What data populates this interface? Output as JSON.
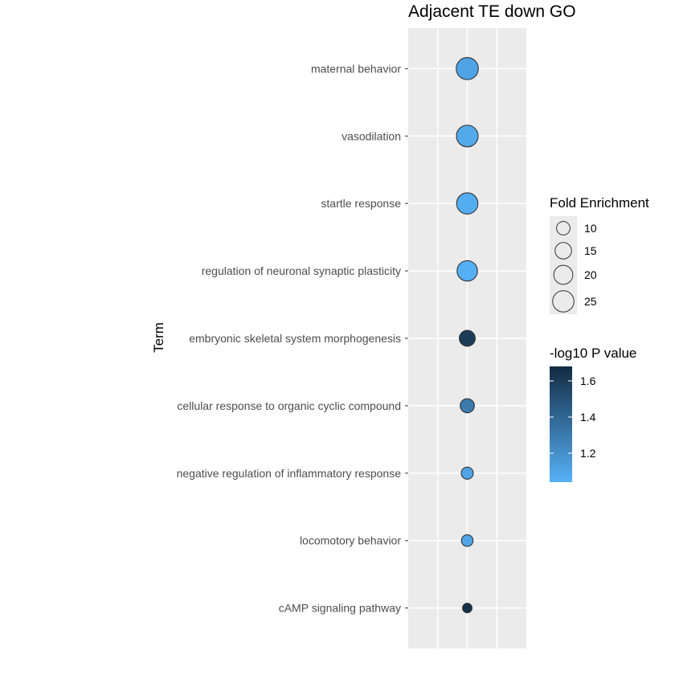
{
  "chart_data": {
    "type": "scatter",
    "title": "Adjacent TE down GO",
    "ylabel": "Term",
    "xlabel": "",
    "grid": true,
    "legend_placement": "right",
    "terms": [
      {
        "term": "maternal behavior",
        "fold_enrichment": 27,
        "neg_log10_p": 1.1
      },
      {
        "term": "vasodilation",
        "fold_enrichment": 26,
        "neg_log10_p": 1.08
      },
      {
        "term": "startle response",
        "fold_enrichment": 25,
        "neg_log10_p": 1.06
      },
      {
        "term": "regulation of neuronal synaptic plasticity",
        "fold_enrichment": 23,
        "neg_log10_p": 1.05
      },
      {
        "term": "embryonic skeletal system morphogenesis",
        "fold_enrichment": 14,
        "neg_log10_p": 1.6
      },
      {
        "term": "cellular response to organic cyclic compound",
        "fold_enrichment": 11,
        "neg_log10_p": 1.3
      },
      {
        "term": "negative regulation of inflammatory response",
        "fold_enrichment": 8,
        "neg_log10_p": 1.1
      },
      {
        "term": "locomotory behavior",
        "fold_enrichment": 7.5,
        "neg_log10_p": 1.1
      },
      {
        "term": "cAMP signaling pathway",
        "fold_enrichment": 5,
        "neg_log10_p": 1.65
      }
    ],
    "size_legend": {
      "title": "Fold Enrichment",
      "breaks": [
        10,
        15,
        20,
        25
      ]
    },
    "color_legend": {
      "title": "-log10 P value",
      "breaks": [
        1.2,
        1.4,
        1.6
      ],
      "range": [
        1.04,
        1.68
      ],
      "low_color": "#56B1F7",
      "high_color": "#132B43"
    },
    "panel_color": "#EBEBEB",
    "grid_color": "#FFFFFF"
  }
}
